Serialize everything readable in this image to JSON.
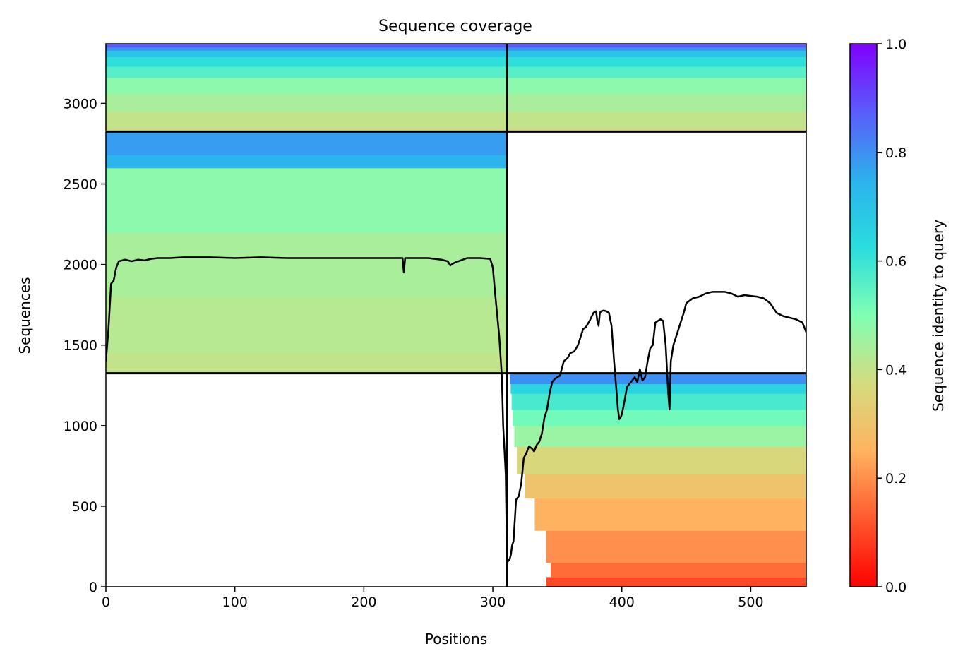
{
  "chart_data": {
    "type": "heatmap",
    "title": "Sequence coverage",
    "xlabel": "Positions",
    "ylabel": "Sequences",
    "xlim": [
      0,
      543
    ],
    "ylim": [
      0,
      3370
    ],
    "xticks": [
      0,
      100,
      200,
      300,
      400,
      500
    ],
    "yticks": [
      0,
      500,
      1000,
      1500,
      2000,
      2500,
      3000
    ],
    "grid": false,
    "colorbar": {
      "label": "Sequence identity to query",
      "range": [
        0,
        1
      ],
      "ticks": [
        "0.0",
        "0.2",
        "0.4",
        "0.6",
        "0.8",
        "1.0"
      ],
      "colormap": "rainbow_r"
    },
    "separators": {
      "vertical_x": 311,
      "horizontal_y": [
        1325,
        2825
      ]
    },
    "blocks": [
      {
        "name": "block-top",
        "x_range": [
          0,
          543
        ],
        "rows": [
          2825,
          3370
        ],
        "identity_bands": [
          [
            2825,
            2845,
            0.36
          ],
          [
            2845,
            2950,
            0.4
          ],
          [
            2950,
            3060,
            0.44
          ],
          [
            3060,
            3160,
            0.48
          ],
          [
            3160,
            3230,
            0.56
          ],
          [
            3230,
            3290,
            0.62
          ],
          [
            3290,
            3330,
            0.7
          ],
          [
            3330,
            3350,
            0.8
          ],
          [
            3350,
            3370,
            0.88
          ]
        ]
      },
      {
        "name": "block-middle",
        "x_range": [
          0,
          311
        ],
        "rows": [
          1325,
          2825
        ],
        "identity_bands": [
          [
            1325,
            1450,
            0.4
          ],
          [
            1450,
            1800,
            0.42
          ],
          [
            1800,
            2200,
            0.44
          ],
          [
            2200,
            2600,
            0.48
          ],
          [
            2600,
            2680,
            0.74
          ],
          [
            2680,
            2825,
            0.78
          ]
        ]
      },
      {
        "name": "block-bottom",
        "x_range": [
          311,
          543
        ],
        "rows": [
          0,
          1325
        ],
        "identity_bands": [
          [
            0,
            60,
            0.1
          ],
          [
            60,
            150,
            0.15
          ],
          [
            150,
            350,
            0.2
          ],
          [
            350,
            550,
            0.25
          ],
          [
            550,
            700,
            0.3
          ],
          [
            700,
            870,
            0.36
          ],
          [
            870,
            1000,
            0.46
          ],
          [
            1000,
            1100,
            0.52
          ],
          [
            1100,
            1200,
            0.58
          ],
          [
            1200,
            1260,
            0.65
          ],
          [
            1260,
            1325,
            0.8
          ]
        ],
        "row_start_x": [
          [
            0,
            340
          ],
          [
            100,
            345
          ],
          [
            300,
            340
          ],
          [
            500,
            330
          ],
          [
            800,
            318
          ],
          [
            1100,
            315
          ],
          [
            1325,
            313
          ]
        ]
      }
    ],
    "coverage_line": {
      "x": [
        0,
        2,
        4,
        6,
        8,
        10,
        15,
        20,
        25,
        30,
        35,
        40,
        50,
        60,
        80,
        100,
        120,
        140,
        160,
        180,
        200,
        220,
        230,
        231,
        232,
        233,
        235,
        250,
        260,
        265,
        267,
        270,
        280,
        290,
        298,
        300,
        302,
        305,
        307,
        308,
        310,
        311,
        312,
        313,
        314,
        315,
        316,
        318,
        320,
        322,
        324,
        326,
        328,
        330,
        332,
        334,
        336,
        338,
        340,
        342,
        344,
        346,
        348,
        350,
        352,
        355,
        358,
        360,
        363,
        366,
        370,
        372,
        375,
        378,
        380,
        381,
        382,
        383,
        384,
        386,
        388,
        390,
        392,
        394,
        396,
        397,
        398,
        399,
        400,
        402,
        404,
        406,
        408,
        410,
        412,
        414,
        416,
        418,
        420,
        422,
        424,
        426,
        428,
        430,
        432,
        434,
        436,
        437,
        438,
        439,
        440,
        442,
        444,
        446,
        448,
        450,
        455,
        460,
        465,
        470,
        475,
        480,
        485,
        490,
        495,
        500,
        505,
        510,
        515,
        520,
        525,
        530,
        535,
        540,
        543
      ],
      "y": [
        1400,
        1600,
        1880,
        1900,
        1980,
        2020,
        2030,
        2020,
        2030,
        2025,
        2035,
        2040,
        2040,
        2045,
        2045,
        2040,
        2045,
        2040,
        2040,
        2040,
        2040,
        2040,
        2040,
        1950,
        2040,
        2040,
        2040,
        2040,
        2030,
        2020,
        1995,
        2010,
        2040,
        2040,
        2035,
        1980,
        1800,
        1550,
        1300,
        1000,
        700,
        150,
        160,
        170,
        200,
        260,
        280,
        540,
        560,
        640,
        800,
        830,
        870,
        860,
        840,
        880,
        900,
        950,
        1050,
        1100,
        1200,
        1270,
        1290,
        1300,
        1310,
        1400,
        1420,
        1450,
        1460,
        1500,
        1600,
        1610,
        1650,
        1700,
        1710,
        1650,
        1620,
        1700,
        1710,
        1715,
        1710,
        1700,
        1620,
        1400,
        1200,
        1100,
        1040,
        1050,
        1070,
        1150,
        1240,
        1260,
        1280,
        1300,
        1270,
        1350,
        1280,
        1300,
        1400,
        1480,
        1500,
        1640,
        1650,
        1660,
        1650,
        1500,
        1200,
        1100,
        1400,
        1450,
        1500,
        1550,
        1600,
        1650,
        1700,
        1760,
        1790,
        1800,
        1820,
        1830,
        1830,
        1830,
        1820,
        1800,
        1810,
        1805,
        1800,
        1790,
        1760,
        1700,
        1680,
        1670,
        1660,
        1640,
        1580
      ]
    }
  }
}
